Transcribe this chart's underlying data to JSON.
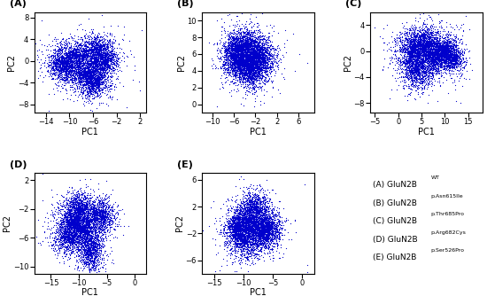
{
  "panels": [
    {
      "label": "(A)",
      "xlim": [
        -16,
        3
      ],
      "ylim": [
        -9.5,
        9
      ],
      "xticks": [
        -14,
        -10,
        -6,
        -2,
        2
      ],
      "yticks": [
        -8,
        -4,
        0,
        4,
        8
      ],
      "xlabel": "PC1",
      "ylabel": "PC2",
      "seed": 1,
      "n_points": 4000,
      "cloud_centers": [
        [
          -9,
          1
        ],
        [
          -7,
          -2
        ],
        [
          -5,
          2
        ],
        [
          -11,
          -1
        ],
        [
          -6,
          -4
        ],
        [
          -4,
          0
        ]
      ],
      "cloud_weights": [
        1.0,
        1.2,
        0.8,
        0.9,
        0.7,
        0.6
      ],
      "cloud_sx": [
        3.5,
        3.0,
        2.5,
        2.5,
        2.5,
        2.0
      ],
      "cloud_sy": [
        2.5,
        3.0,
        2.5,
        2.5,
        2.5,
        2.0
      ]
    },
    {
      "label": "(B)",
      "xlim": [
        -12,
        9
      ],
      "ylim": [
        -1,
        11
      ],
      "xticks": [
        -10,
        -6,
        -2,
        2,
        6
      ],
      "yticks": [
        0,
        2,
        4,
        6,
        8,
        10
      ],
      "xlabel": "PC1",
      "ylabel": "PC2",
      "seed": 2,
      "n_points": 4000,
      "cloud_centers": [
        [
          -4,
          7
        ],
        [
          -2,
          6
        ],
        [
          -5,
          5
        ],
        [
          -3,
          4
        ],
        [
          -1,
          5
        ],
        [
          -6,
          6
        ]
      ],
      "cloud_weights": [
        1.0,
        1.0,
        1.0,
        0.8,
        0.7,
        0.8
      ],
      "cloud_sx": [
        2.5,
        2.5,
        2.5,
        2.0,
        2.5,
        2.0
      ],
      "cloud_sy": [
        2.0,
        2.0,
        2.0,
        2.0,
        2.0,
        2.0
      ]
    },
    {
      "label": "(C)",
      "xlim": [
        -6,
        18
      ],
      "ylim": [
        -9.5,
        6
      ],
      "xticks": [
        -5,
        0,
        5,
        10,
        15
      ],
      "yticks": [
        -8,
        -4,
        0,
        4
      ],
      "xlabel": "PC1",
      "ylabel": "PC2",
      "seed": 3,
      "n_points": 4000,
      "cloud_centers": [
        [
          3,
          0
        ],
        [
          6,
          1
        ],
        [
          8,
          -1
        ],
        [
          4,
          -3
        ],
        [
          10,
          0
        ],
        [
          12,
          -1
        ]
      ],
      "cloud_weights": [
        1.0,
        1.0,
        0.9,
        0.8,
        0.7,
        0.5
      ],
      "cloud_sx": [
        3.5,
        3.0,
        3.0,
        3.0,
        2.0,
        2.0
      ],
      "cloud_sy": [
        3.0,
        2.5,
        2.5,
        2.5,
        2.0,
        2.0
      ]
    },
    {
      "label": "(D)",
      "xlim": [
        -18,
        2
      ],
      "ylim": [
        -11,
        3
      ],
      "xticks": [
        -15,
        -10,
        -5,
        0
      ],
      "yticks": [
        -10,
        -6,
        -2,
        2
      ],
      "xlabel": "PC1",
      "ylabel": "PC2",
      "seed": 4,
      "n_points": 4000,
      "cloud_centers": [
        [
          -10,
          -2
        ],
        [
          -9,
          -5
        ],
        [
          -8,
          -8
        ],
        [
          -11,
          -4
        ],
        [
          -6,
          -3
        ],
        [
          -12,
          -6
        ]
      ],
      "cloud_weights": [
        1.0,
        1.0,
        0.9,
        0.9,
        0.8,
        0.7
      ],
      "cloud_sx": [
        2.5,
        2.5,
        2.0,
        2.5,
        2.0,
        2.5
      ],
      "cloud_sy": [
        2.0,
        2.5,
        2.5,
        2.0,
        2.0,
        2.0
      ]
    },
    {
      "label": "(E)",
      "xlim": [
        -17,
        2
      ],
      "ylim": [
        -8,
        7
      ],
      "xticks": [
        -15,
        -10,
        -5,
        0
      ],
      "yticks": [
        -6,
        -2,
        2,
        6
      ],
      "xlabel": "PC1",
      "ylabel": "PC2",
      "seed": 5,
      "n_points": 4000,
      "cloud_centers": [
        [
          -9,
          0
        ],
        [
          -7,
          -2
        ],
        [
          -10,
          -3
        ],
        [
          -6,
          -1
        ],
        [
          -11,
          -1
        ],
        [
          -8,
          2
        ]
      ],
      "cloud_weights": [
        1.0,
        1.0,
        0.9,
        0.9,
        0.8,
        0.7
      ],
      "cloud_sx": [
        2.5,
        2.5,
        2.5,
        2.0,
        2.0,
        2.0
      ],
      "cloud_sy": [
        2.5,
        2.5,
        2.5,
        2.0,
        2.0,
        2.0
      ]
    }
  ],
  "legend_items": [
    [
      "(A) GluN2B",
      "WT"
    ],
    [
      "(B) GluN2B",
      "p.Asn615Ile"
    ],
    [
      "(C) GluN2B",
      "p.Thr685Pro"
    ],
    [
      "(D) GluN2B",
      "p.Arg682Cys"
    ],
    [
      "(E) GluN2B",
      "p.Ser526Pro"
    ]
  ],
  "dot_color": "#0000cc",
  "dot_size": 3.0,
  "background_color": "#ffffff"
}
